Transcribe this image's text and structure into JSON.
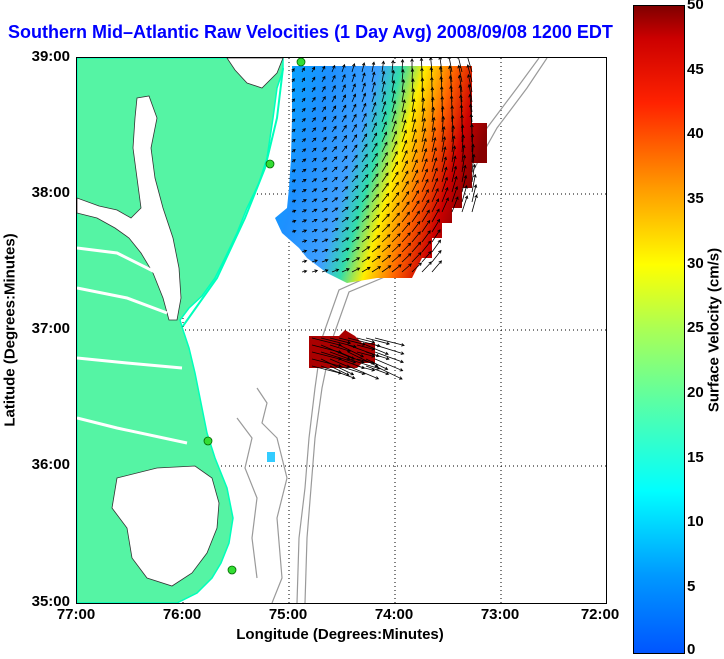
{
  "title": "Southern Mid–Atlantic Raw Velocities (1 Day Avg) 2008/09/08 1200 EDT",
  "axes": {
    "xlabel": "Longitude (Degrees:Minutes)",
    "ylabel": "Latitude (Degrees:Minutes)",
    "xticks": [
      "77:00",
      "76:00",
      "75:00",
      "74:00",
      "73:00",
      "72:00"
    ],
    "yticks": [
      "39:00",
      "38:00",
      "37:00",
      "36:00",
      "35:00"
    ],
    "xlim": [
      -77,
      -72
    ],
    "ylim": [
      35,
      39
    ],
    "grid": "dotted"
  },
  "colorbar": {
    "label": "Surface Velocity (cm/s)",
    "ticks": [
      "50",
      "45",
      "40",
      "35",
      "30",
      "25",
      "20",
      "15",
      "10",
      "5",
      "0"
    ],
    "range": [
      0,
      50
    ],
    "colormap": "jet"
  },
  "colors": {
    "land": "#55f4a4",
    "land_edge": "#00ffbb",
    "water": "#ffffff",
    "title": "#0000ff",
    "bathymetry": "#9a9a9a",
    "station": "#33dd33"
  },
  "stations": [
    "station-north",
    "station-delaware",
    "station-hatteras-north",
    "station-hatteras-south"
  ]
}
